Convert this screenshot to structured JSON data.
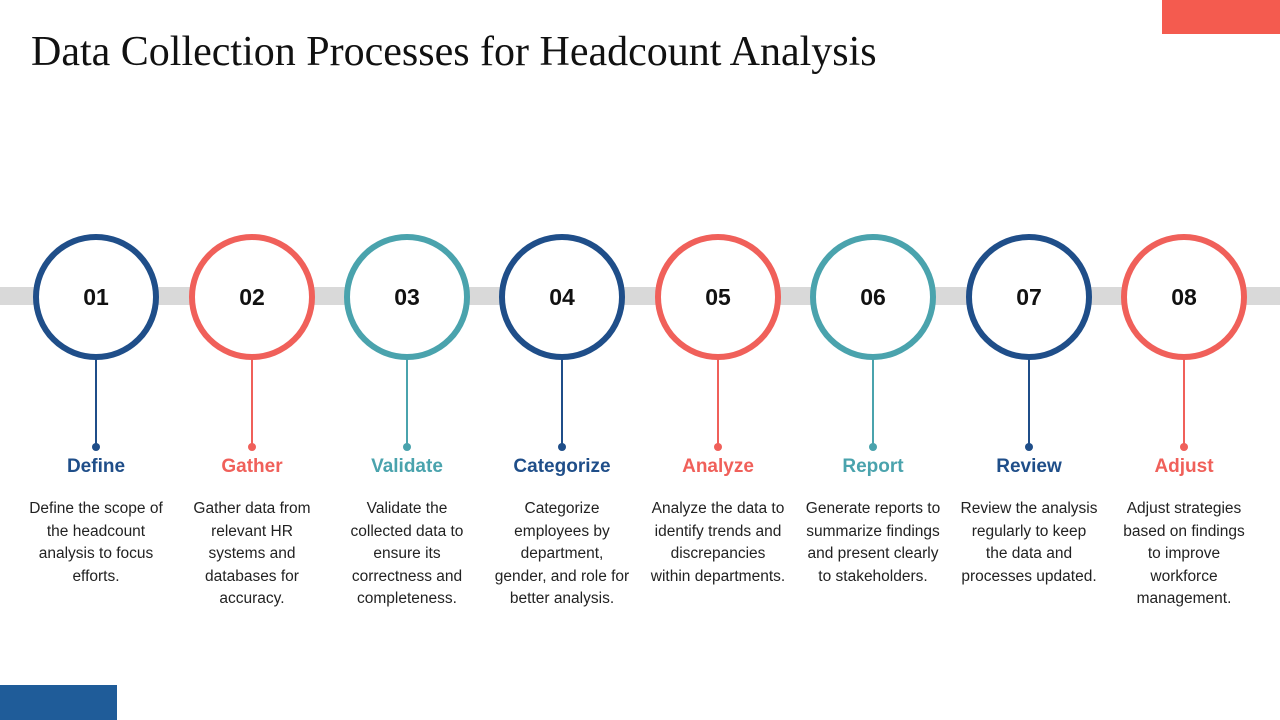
{
  "header": {
    "title": "Data Collection Processes for Headcount Analysis"
  },
  "steps": [
    {
      "number": "01",
      "label": "Define",
      "description": "Define the scope of the headcount analysis to focus efforts."
    },
    {
      "number": "02",
      "label": "Gather",
      "description": "Gather data from relevant HR systems and databases for accuracy."
    },
    {
      "number": "03",
      "label": "Validate",
      "description": "Validate the collected data to ensure its correctness and completeness."
    },
    {
      "number": "04",
      "label": "Categorize",
      "description": "Categorize employees by department, gender, and role for better analysis."
    },
    {
      "number": "05",
      "label": "Analyze",
      "description": "Analyze the data to identify trends and discrepancies within departments."
    },
    {
      "number": "06",
      "label": "Report",
      "description": "Generate reports to summarize findings and present clearly to stakeholders."
    },
    {
      "number": "07",
      "label": "Review",
      "description": "Review the analysis regularly to keep the data and processes updated."
    },
    {
      "number": "08",
      "label": "Adjust",
      "description": "Adjust strategies based on findings to improve workforce management."
    }
  ]
}
